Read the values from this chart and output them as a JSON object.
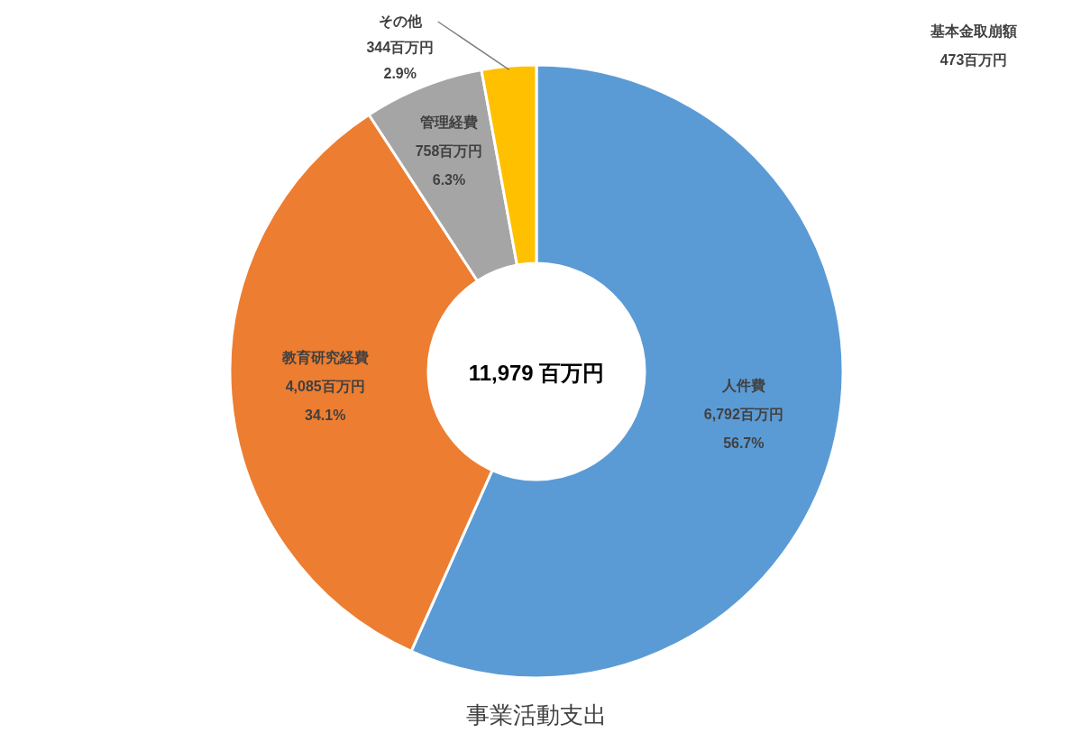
{
  "chart_data": {
    "type": "donut",
    "title": "事業活動支出",
    "categories": [
      "人件費",
      "教育研究経費",
      "管理経費",
      "その他"
    ],
    "values": [
      6792,
      4085,
      758,
      344
    ],
    "colors": [
      "#5b9bd5",
      "#ed7d31",
      "#a5a5a5",
      "#ffc000"
    ],
    "value_labels": [
      "6,792百万円\n56.7%",
      "4,085百万円\n34.1%",
      "758百万円\n6.3%",
      "344百万円\n2.9%"
    ],
    "annotations": [
      "11,979 百万円",
      "基本金取崩額\n473百万円"
    ]
  }
}
